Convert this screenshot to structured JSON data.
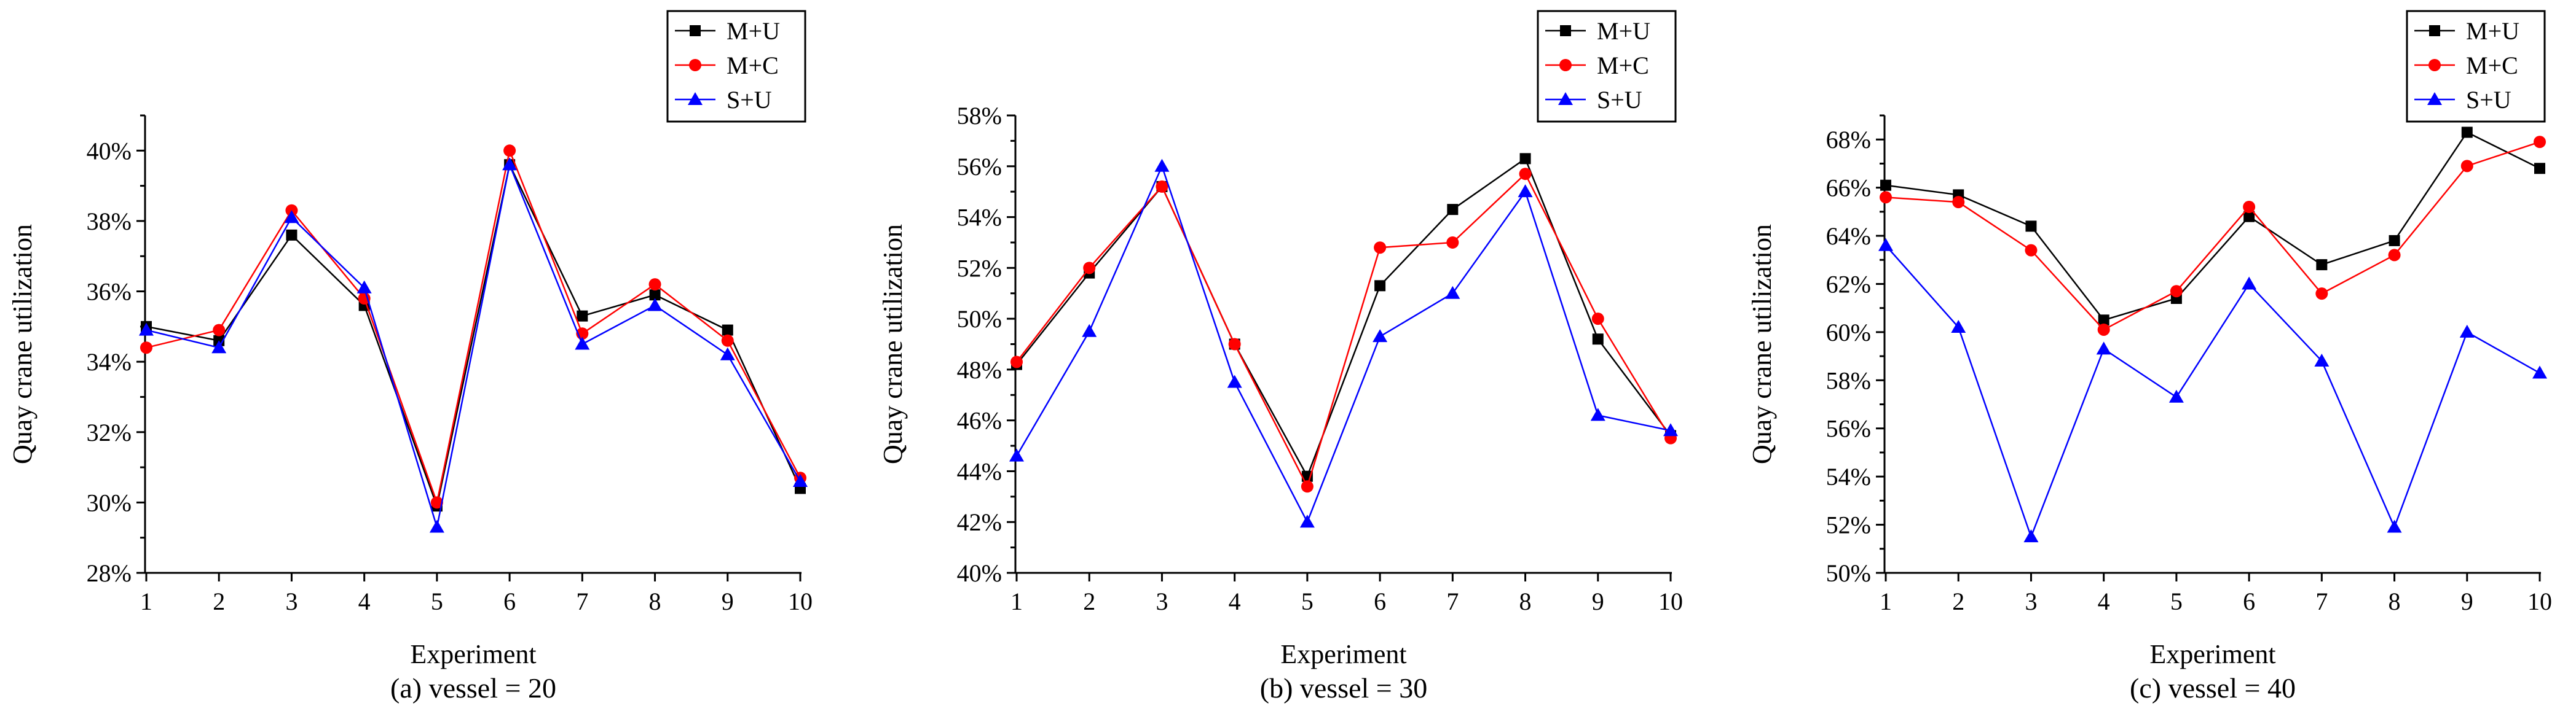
{
  "colors": {
    "M+U": "#000000",
    "M+C": "#ff0000",
    "S+U": "#0000ff"
  },
  "chart_data": [
    {
      "type": "line",
      "caption": "(a) vessel = 20",
      "xlabel": "Experiment",
      "ylabel": "Quay crane utilization",
      "x": [
        1,
        2,
        3,
        4,
        5,
        6,
        7,
        8,
        9,
        10
      ],
      "x_ticks": [
        "1",
        "2",
        "3",
        "4",
        "5",
        "6",
        "7",
        "8",
        "9",
        "10"
      ],
      "ylim": [
        28,
        41
      ],
      "y_ticks": [
        {
          "value": 28,
          "label": "28%"
        },
        {
          "value": 30,
          "label": "30%"
        },
        {
          "value": 32,
          "label": "32%"
        },
        {
          "value": 34,
          "label": "34%"
        },
        {
          "value": 36,
          "label": "36%"
        },
        {
          "value": 38,
          "label": "38%"
        },
        {
          "value": 40,
          "label": "40%"
        }
      ],
      "legend": "top-right",
      "series": [
        {
          "name": "M+U",
          "marker": "square",
          "values": [
            35.0,
            34.6,
            37.6,
            35.6,
            29.9,
            39.6,
            35.3,
            35.9,
            34.9,
            30.4
          ]
        },
        {
          "name": "M+C",
          "marker": "circle",
          "values": [
            34.4,
            34.9,
            38.3,
            35.8,
            30.0,
            40.0,
            34.8,
            36.2,
            34.6,
            30.7
          ]
        },
        {
          "name": "S+U",
          "marker": "triangle",
          "values": [
            34.9,
            34.4,
            38.1,
            36.1,
            29.3,
            39.6,
            34.5,
            35.6,
            34.2,
            30.6
          ]
        }
      ]
    },
    {
      "type": "line",
      "caption": "(b) vessel = 30",
      "xlabel": "Experiment",
      "ylabel": "Quay crane utilization",
      "x": [
        1,
        2,
        3,
        4,
        5,
        6,
        7,
        8,
        9,
        10
      ],
      "x_ticks": [
        "1",
        "2",
        "3",
        "4",
        "5",
        "6",
        "7",
        "8",
        "9",
        "10"
      ],
      "ylim": [
        40,
        58
      ],
      "y_ticks": [
        {
          "value": 40,
          "label": "40%"
        },
        {
          "value": 42,
          "label": "42%"
        },
        {
          "value": 44,
          "label": "44%"
        },
        {
          "value": 46,
          "label": "46%"
        },
        {
          "value": 48,
          "label": "48%"
        },
        {
          "value": 50,
          "label": "50%"
        },
        {
          "value": 52,
          "label": "52%"
        },
        {
          "value": 54,
          "label": "54%"
        },
        {
          "value": 56,
          "label": "56%"
        },
        {
          "value": 58,
          "label": "58%"
        }
      ],
      "legend": "top-right",
      "series": [
        {
          "name": "M+U",
          "marker": "square",
          "values": [
            48.2,
            51.8,
            55.2,
            49.0,
            43.8,
            51.3,
            54.3,
            56.3,
            49.2,
            45.4
          ]
        },
        {
          "name": "M+C",
          "marker": "circle",
          "values": [
            48.3,
            52.0,
            55.2,
            49.0,
            43.4,
            52.8,
            53.0,
            55.7,
            50.0,
            45.3
          ]
        },
        {
          "name": "S+U",
          "marker": "triangle",
          "values": [
            44.6,
            49.5,
            56.0,
            47.5,
            42.0,
            49.3,
            51.0,
            55.0,
            46.2,
            45.6
          ]
        }
      ]
    },
    {
      "type": "line",
      "caption": "(c) vessel = 40",
      "xlabel": "Experiment",
      "ylabel": "Quay crane utilization",
      "x": [
        1,
        2,
        3,
        4,
        5,
        6,
        7,
        8,
        9,
        10
      ],
      "x_ticks": [
        "1",
        "2",
        "3",
        "4",
        "5",
        "6",
        "7",
        "8",
        "9",
        "10"
      ],
      "ylim": [
        50,
        69
      ],
      "y_ticks": [
        {
          "value": 50,
          "label": "50%"
        },
        {
          "value": 52,
          "label": "52%"
        },
        {
          "value": 54,
          "label": "54%"
        },
        {
          "value": 56,
          "label": "56%"
        },
        {
          "value": 58,
          "label": "58%"
        },
        {
          "value": 60,
          "label": "60%"
        },
        {
          "value": 62,
          "label": "62%"
        },
        {
          "value": 64,
          "label": "64%"
        },
        {
          "value": 66,
          "label": "66%"
        },
        {
          "value": 68,
          "label": "68%"
        }
      ],
      "legend": "top-right",
      "series": [
        {
          "name": "M+U",
          "marker": "square",
          "values": [
            66.1,
            65.7,
            64.4,
            60.5,
            61.4,
            64.8,
            62.8,
            63.8,
            68.3,
            66.8
          ]
        },
        {
          "name": "M+C",
          "marker": "circle",
          "values": [
            65.6,
            65.4,
            63.4,
            60.1,
            61.7,
            65.2,
            61.6,
            63.2,
            66.9,
            67.9
          ]
        },
        {
          "name": "S+U",
          "marker": "triangle",
          "values": [
            63.6,
            60.2,
            51.5,
            59.3,
            57.3,
            62.0,
            58.8,
            51.9,
            60.0,
            58.3
          ]
        }
      ]
    }
  ]
}
